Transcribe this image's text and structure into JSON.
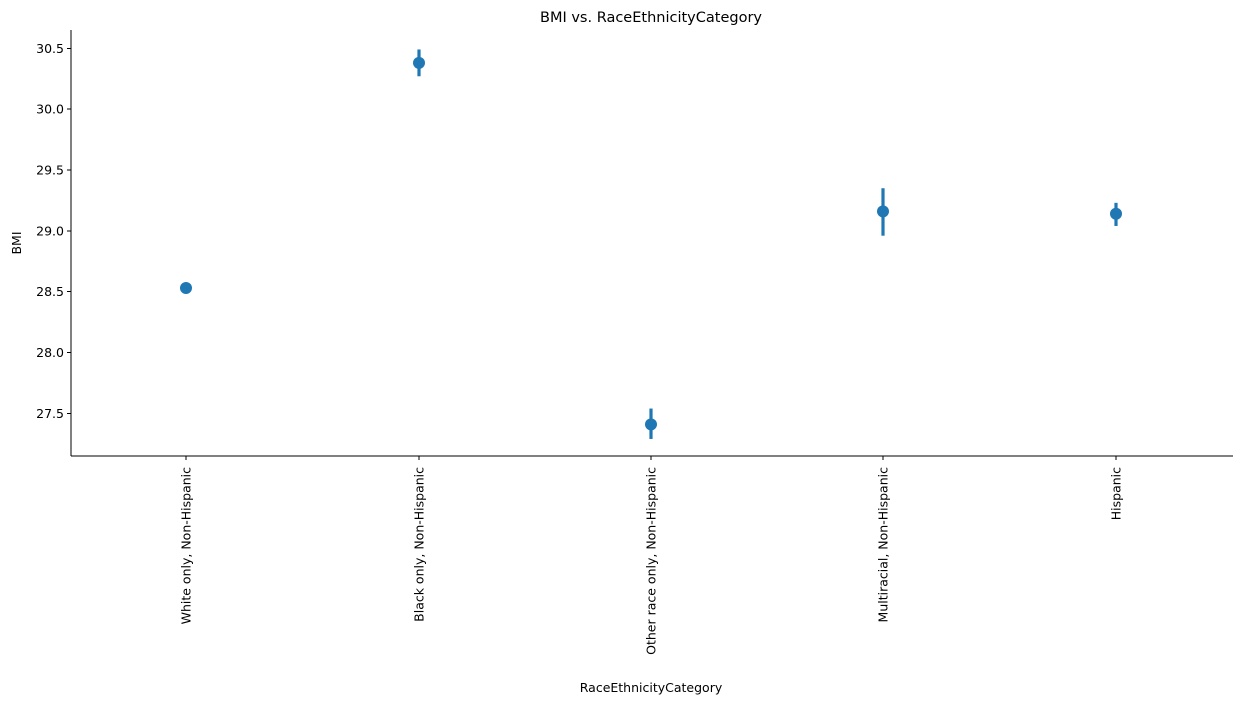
{
  "chart_data": {
    "type": "scatter",
    "title": "BMI vs. RaceEthnicityCategory",
    "xlabel": "RaceEthnicityCategory",
    "ylabel": "BMI",
    "categories": [
      "White only, Non-Hispanic",
      "Black only, Non-Hispanic",
      "Other race only, Non-Hispanic",
      "Multiracial, Non-Hispanic",
      "Hispanic"
    ],
    "values": [
      28.53,
      30.38,
      27.41,
      29.16,
      29.14
    ],
    "error_low": [
      28.51,
      30.27,
      27.29,
      28.96,
      29.04
    ],
    "error_high": [
      28.55,
      30.49,
      27.54,
      29.35,
      29.23
    ],
    "ylim": [
      27.15,
      30.65
    ],
    "yticks": [
      27.5,
      28.0,
      28.5,
      29.0,
      29.5,
      30.0,
      30.5
    ],
    "ytick_labels": [
      "27.5",
      "28.0",
      "28.5",
      "29.0",
      "29.5",
      "30.0",
      "30.5"
    ],
    "color": "#1f77b4",
    "grid": false,
    "legend": "none"
  }
}
